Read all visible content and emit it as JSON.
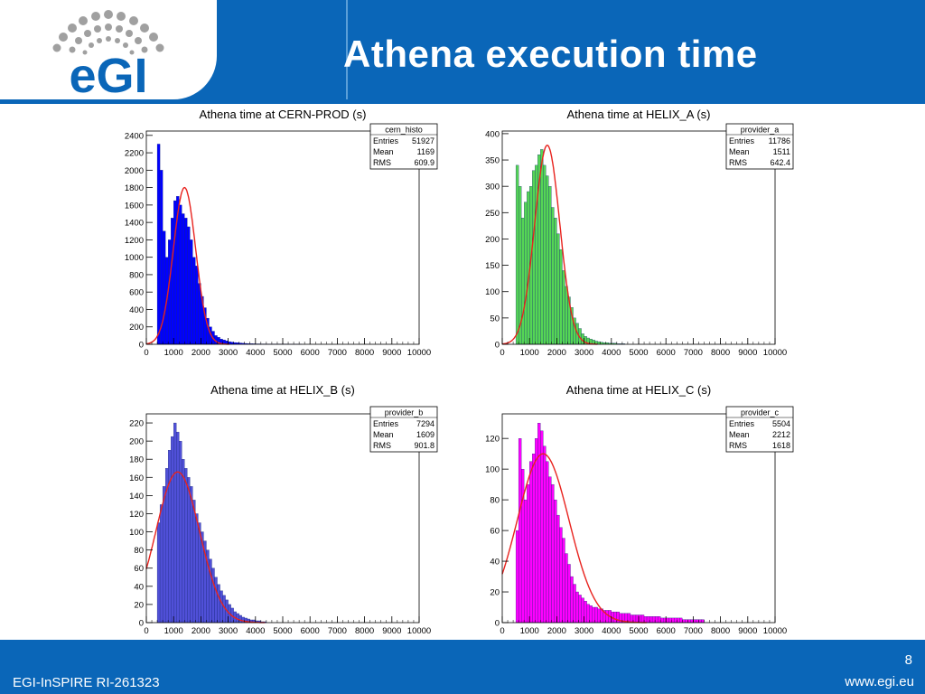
{
  "slide": {
    "title": "Athena execution time",
    "footer_left": "EGI-InSPIRE RI-261323",
    "footer_right": "www.egi.eu",
    "page_number": "8",
    "logo_text": "eGI"
  },
  "colors": {
    "header": "#0a66b8",
    "fit_line": "#e8231e"
  },
  "chart_data": [
    {
      "type": "bar",
      "title": "Athena time at CERN-PROD (s)",
      "stats": {
        "name": "cern_histo",
        "rows": [
          [
            "Entries",
            "51927"
          ],
          [
            "Mean",
            "1169"
          ],
          [
            "RMS",
            "609.9"
          ]
        ]
      },
      "xlim": [
        0,
        10000
      ],
      "ylim": [
        0,
        2450
      ],
      "x_ticks": [
        0,
        1000,
        2000,
        3000,
        4000,
        5000,
        6000,
        7000,
        8000,
        9000,
        10000
      ],
      "y_ticks": [
        0,
        200,
        400,
        600,
        800,
        1000,
        1200,
        1400,
        1600,
        1800,
        2000,
        2200,
        2400
      ],
      "fill": "#0000ff",
      "bin_start": 400,
      "bin_width": 100,
      "values": [
        2300,
        2000,
        1300,
        1000,
        1200,
        1450,
        1650,
        1700,
        1600,
        1500,
        1450,
        1350,
        1200,
        1000,
        900,
        700,
        550,
        420,
        300,
        200,
        150,
        100,
        80,
        60,
        50,
        40,
        30,
        25,
        20,
        18,
        15,
        12,
        10,
        8,
        7,
        6,
        5,
        5,
        4,
        4,
        3,
        3,
        3,
        2,
        2,
        2,
        2,
        2,
        1,
        1,
        1,
        1,
        1
      ],
      "fit": {
        "mean": 1400,
        "sigma": 410,
        "amplitude": 1800
      }
    },
    {
      "type": "bar",
      "title": "Athena time at HELIX_A (s)",
      "stats": {
        "name": "provider_a",
        "rows": [
          [
            "Entries",
            "11786"
          ],
          [
            "Mean",
            "1511"
          ],
          [
            "RMS",
            "642.4"
          ]
        ]
      },
      "xlim": [
        0,
        10000
      ],
      "ylim": [
        0,
        405
      ],
      "x_ticks": [
        0,
        1000,
        2000,
        3000,
        4000,
        5000,
        6000,
        7000,
        8000,
        9000,
        10000
      ],
      "y_ticks": [
        0,
        50,
        100,
        150,
        200,
        250,
        300,
        350,
        400
      ],
      "fill": "#55d655",
      "bin_start": 500,
      "bin_width": 100,
      "values": [
        340,
        300,
        240,
        270,
        290,
        300,
        330,
        340,
        360,
        370,
        340,
        320,
        300,
        260,
        240,
        210,
        180,
        140,
        110,
        90,
        70,
        50,
        40,
        30,
        20,
        15,
        12,
        10,
        8,
        6,
        5,
        4,
        3,
        3,
        2,
        2,
        2,
        1,
        1,
        1
      ],
      "fit": {
        "mean": 1650,
        "sigma": 460,
        "amplitude": 378
      }
    },
    {
      "type": "bar",
      "title": "Athena time at HELIX_B (s)",
      "stats": {
        "name": "provider_b",
        "rows": [
          [
            "Entries",
            "7294"
          ],
          [
            "Mean",
            "1609"
          ],
          [
            "RMS",
            "901.8"
          ]
        ]
      },
      "xlim": [
        0,
        10000
      ],
      "ylim": [
        0,
        230
      ],
      "x_ticks": [
        0,
        1000,
        2000,
        3000,
        4000,
        5000,
        6000,
        7000,
        8000,
        9000,
        10000
      ],
      "y_ticks": [
        0,
        20,
        40,
        60,
        80,
        100,
        120,
        140,
        160,
        180,
        200,
        220
      ],
      "fill": "#5050d8",
      "bin_start": 400,
      "bin_width": 100,
      "values": [
        110,
        130,
        150,
        170,
        190,
        205,
        220,
        210,
        200,
        180,
        170,
        160,
        150,
        135,
        120,
        110,
        100,
        90,
        80,
        70,
        60,
        50,
        42,
        35,
        30,
        25,
        20,
        16,
        12,
        10,
        8,
        6,
        5,
        4,
        3,
        3,
        2,
        2,
        1,
        1
      ],
      "fit": {
        "mean": 1150,
        "sigma": 800,
        "amplitude": 166
      }
    },
    {
      "type": "bar",
      "title": "Athena time at HELIX_C (s)",
      "stats": {
        "name": "provider_c",
        "rows": [
          [
            "Entries",
            "5504"
          ],
          [
            "Mean",
            "2212"
          ],
          [
            "RMS",
            "1618"
          ]
        ]
      },
      "xlim": [
        0,
        10000
      ],
      "ylim": [
        0,
        136
      ],
      "x_ticks": [
        0,
        1000,
        2000,
        3000,
        4000,
        5000,
        6000,
        7000,
        8000,
        9000,
        10000
      ],
      "y_ticks": [
        0,
        20,
        40,
        60,
        80,
        100,
        120
      ],
      "fill": "#ff00ff",
      "bin_start": 500,
      "bin_width": 100,
      "values": [
        60,
        120,
        100,
        80,
        90,
        105,
        110,
        120,
        130,
        125,
        115,
        105,
        95,
        90,
        80,
        70,
        62,
        55,
        45,
        38,
        30,
        25,
        20,
        18,
        16,
        14,
        12,
        11,
        10,
        10,
        9,
        9,
        8,
        8,
        8,
        7,
        7,
        7,
        6,
        6,
        6,
        6,
        5,
        5,
        5,
        5,
        5,
        4,
        4,
        4,
        4,
        4,
        4,
        3,
        3,
        3,
        3,
        3,
        3,
        3,
        3,
        2,
        2,
        2,
        2,
        2,
        2,
        2,
        2
      ],
      "fit": {
        "mean": 1500,
        "sigma": 950,
        "amplitude": 110
      }
    }
  ]
}
